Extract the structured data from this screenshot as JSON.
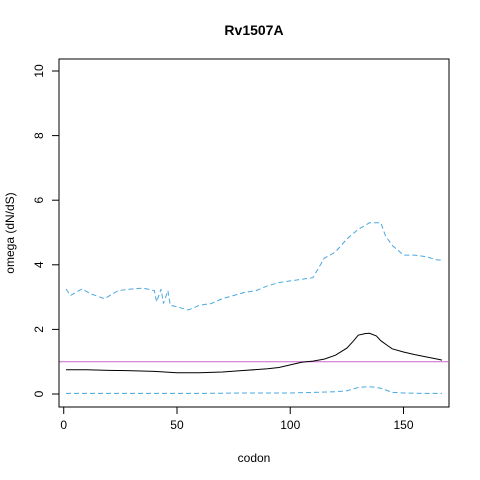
{
  "chart_data": {
    "type": "line",
    "title": "Rv1507A",
    "xlabel": "codon",
    "ylabel": "omega (dN/dS)",
    "xlim": [
      1,
      167
    ],
    "ylim": [
      0,
      10
    ],
    "xticks": [
      0,
      50,
      100,
      150
    ],
    "xtick_labels": [
      "0",
      "50",
      "100",
      "150"
    ],
    "yticks": [
      0,
      2,
      4,
      6,
      8,
      10
    ],
    "ytick_labels": [
      "0",
      "2",
      "4",
      "6",
      "8",
      "10"
    ],
    "grid": false,
    "legend": "none",
    "reference_line": {
      "y": 1,
      "color": "#cc66cc"
    },
    "series": [
      {
        "style": "solid",
        "color": "#000000",
        "x": [
          1,
          10,
          20,
          30,
          40,
          50,
          60,
          70,
          80,
          90,
          95,
          100,
          105,
          110,
          115,
          120,
          125,
          128,
          130,
          133,
          135,
          138,
          140,
          143,
          145,
          150,
          155,
          160,
          165,
          167
        ],
        "y": [
          0.75,
          0.75,
          0.73,
          0.72,
          0.7,
          0.66,
          0.66,
          0.68,
          0.73,
          0.78,
          0.82,
          0.9,
          0.98,
          1.02,
          1.08,
          1.2,
          1.42,
          1.65,
          1.82,
          1.87,
          1.88,
          1.8,
          1.65,
          1.5,
          1.4,
          1.3,
          1.22,
          1.15,
          1.08,
          1.05
        ]
      },
      {
        "style": "dashed",
        "color": "#4aa8e0",
        "x": [
          1,
          3,
          8,
          12,
          18,
          24,
          30,
          35,
          40,
          41,
          43,
          44,
          46,
          47,
          50,
          55,
          60,
          65,
          70,
          75,
          80,
          85,
          90,
          95,
          100,
          105,
          110,
          115,
          120,
          125,
          130,
          135,
          140,
          142,
          145,
          150,
          155,
          160,
          165,
          167
        ],
        "y": [
          3.25,
          3.05,
          3.25,
          3.1,
          2.95,
          3.2,
          3.25,
          3.28,
          3.2,
          2.85,
          3.25,
          2.8,
          3.2,
          2.75,
          2.7,
          2.6,
          2.75,
          2.8,
          2.95,
          3.05,
          3.15,
          3.2,
          3.35,
          3.45,
          3.5,
          3.55,
          3.6,
          4.2,
          4.4,
          4.8,
          5.1,
          5.3,
          5.3,
          4.9,
          4.6,
          4.3,
          4.3,
          4.25,
          4.15,
          4.15
        ]
      },
      {
        "style": "dashed",
        "color": "#4aa8e0",
        "x": [
          1,
          20,
          40,
          60,
          80,
          100,
          110,
          120,
          125,
          130,
          133,
          136,
          140,
          145,
          150,
          160,
          167
        ],
        "y": [
          0.02,
          0.02,
          0.02,
          0.02,
          0.03,
          0.03,
          0.05,
          0.07,
          0.1,
          0.2,
          0.22,
          0.22,
          0.18,
          0.05,
          0.03,
          0.02,
          0.02
        ]
      }
    ]
  }
}
